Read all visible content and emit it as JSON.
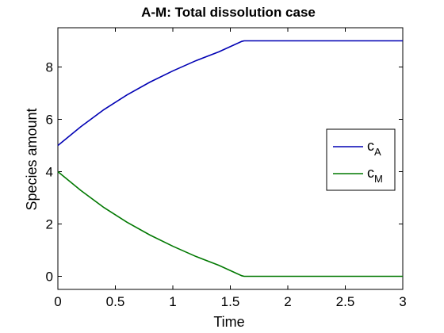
{
  "chart_data": {
    "type": "line",
    "title": "A-M: Total dissolution case",
    "xlabel": "Time",
    "ylabel": "Species amount",
    "xlim": [
      0,
      3
    ],
    "ylim": [
      -0.5,
      9.5
    ],
    "xticks": [
      0,
      0.5,
      1,
      1.5,
      2,
      2.5,
      3
    ],
    "xtick_labels": [
      "0",
      "0.5",
      "1",
      "1.5",
      "2",
      "2.5",
      "3"
    ],
    "yticks": [
      0,
      2,
      4,
      6,
      8
    ],
    "ytick_labels": [
      "0",
      "2",
      "4",
      "6",
      "8"
    ],
    "grid": false,
    "legend_position": "right",
    "series": [
      {
        "name": "c",
        "subscript": "A",
        "color": "#0000b4",
        "x": [
          0,
          0.2,
          0.4,
          0.6,
          0.8,
          1.0,
          1.2,
          1.4,
          1.6,
          1.62,
          3.0
        ],
        "y": [
          5.0,
          5.72,
          6.37,
          6.93,
          7.42,
          7.85,
          8.24,
          8.58,
          8.98,
          9.0,
          9.0
        ]
      },
      {
        "name": "c",
        "subscript": "M",
        "color": "#007800",
        "x": [
          0,
          0.2,
          0.4,
          0.6,
          0.8,
          1.0,
          1.2,
          1.4,
          1.6,
          1.62,
          3.0
        ],
        "y": [
          4.0,
          3.28,
          2.63,
          2.07,
          1.58,
          1.15,
          0.76,
          0.42,
          0.02,
          0.0,
          0.0
        ]
      }
    ]
  }
}
